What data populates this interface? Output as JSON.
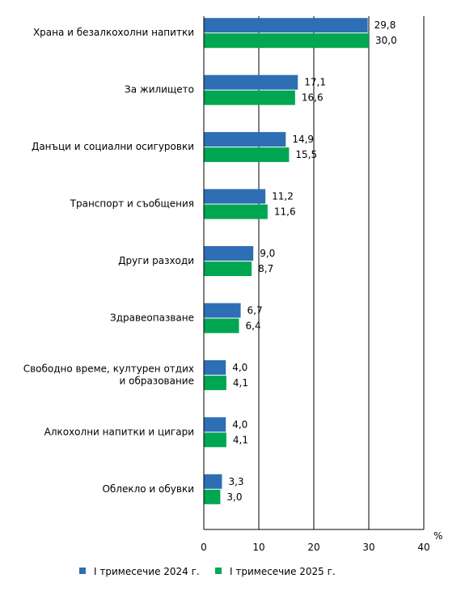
{
  "chart_data": {
    "type": "bar",
    "orientation": "horizontal",
    "categories": [
      "Храна и безалкохолни напитки",
      "За жилището",
      "Данъци и социални осигуровки",
      "Транспорт и съобщения",
      "Други разходи",
      "Здравеопазване",
      "Свободно време, културен отдих и образование",
      "Алкохолни напитки и цигари",
      "Облекло и обувки"
    ],
    "series": [
      {
        "name": "I тримесечие 2024 г.",
        "color": "#2e6eb5",
        "values": [
          29.8,
          17.1,
          14.9,
          11.2,
          9.0,
          6.7,
          4.0,
          4.0,
          3.3
        ],
        "labels": [
          "29,8",
          "17,1",
          "14,9",
          "11,2",
          "9,0",
          "6,7",
          "4,0",
          "4,0",
          "3,3"
        ]
      },
      {
        "name": "I тримесечие 2025 г.",
        "color": "#00a651",
        "values": [
          30.0,
          16.6,
          15.5,
          11.6,
          8.7,
          6.4,
          4.1,
          4.1,
          3.0
        ],
        "labels": [
          "30,0",
          "16,6",
          "15,5",
          "11,6",
          "8,7",
          "6,4",
          "4,1",
          "4,1",
          "3,0"
        ]
      }
    ],
    "xlim": [
      0,
      40
    ],
    "xticks": [
      0,
      10,
      20,
      30,
      40
    ],
    "xtick_labels": [
      "0",
      "10",
      "20",
      "30",
      "40"
    ],
    "xlabel": "%",
    "grid": "vertical",
    "legend": "bottom"
  }
}
